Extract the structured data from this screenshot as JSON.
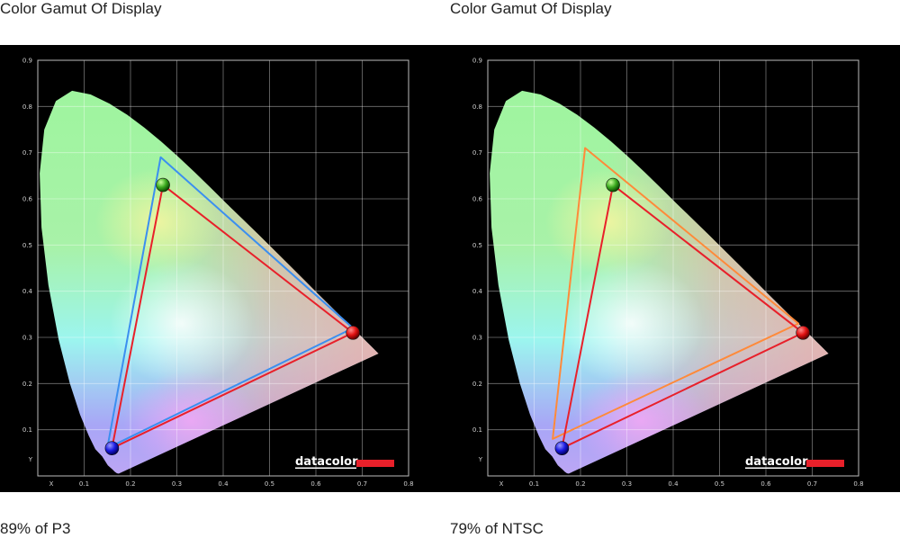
{
  "chart_data": [
    {
      "type": "scatter",
      "title": "Color Gamut Of Display",
      "caption": "89% of P3",
      "xlabel": "X",
      "ylabel": "Y",
      "xlim": [
        0,
        0.8
      ],
      "ylim": [
        0,
        0.9
      ],
      "x_ticks": [
        "0.1",
        "0.2",
        "0.3",
        "0.4",
        "0.5",
        "0.6",
        "0.7",
        "0.8"
      ],
      "y_ticks": [
        "0.1",
        "0.2",
        "0.3",
        "0.4",
        "0.5",
        "0.6",
        "0.7",
        "0.8",
        "0.9"
      ],
      "grid": true,
      "logo": "datacolor",
      "series": [
        {
          "points": [
            [
              0.68,
              0.32
            ],
            [
              0.265,
              0.69
            ],
            [
              0.15,
              0.06
            ]
          ],
          "color": "#3b8ff0"
        },
        {
          "points": [
            [
              0.68,
              0.31
            ],
            [
              0.27,
              0.63
            ],
            [
              0.16,
              0.06
            ]
          ],
          "color": "#e8202a"
        }
      ],
      "primaries": {
        "red": [
          0.68,
          0.31
        ],
        "green": [
          0.27,
          0.63
        ],
        "blue": [
          0.16,
          0.06
        ]
      }
    },
    {
      "type": "scatter",
      "title": "Color Gamut Of Display",
      "caption": "79% of NTSC",
      "xlabel": "X",
      "ylabel": "Y",
      "xlim": [
        0,
        0.8
      ],
      "ylim": [
        0,
        0.9
      ],
      "x_ticks": [
        "0.1",
        "0.2",
        "0.3",
        "0.4",
        "0.5",
        "0.6",
        "0.7",
        "0.8"
      ],
      "y_ticks": [
        "0.1",
        "0.2",
        "0.3",
        "0.4",
        "0.5",
        "0.6",
        "0.7",
        "0.8",
        "0.9"
      ],
      "grid": true,
      "logo": "datacolor",
      "series": [
        {
          "points": [
            [
              0.67,
              0.33
            ],
            [
              0.21,
              0.71
            ],
            [
              0.14,
              0.08
            ]
          ],
          "color": "#ff8a3a"
        },
        {
          "points": [
            [
              0.68,
              0.31
            ],
            [
              0.27,
              0.63
            ],
            [
              0.16,
              0.06
            ]
          ],
          "color": "#e8202a"
        }
      ],
      "primaries": {
        "red": [
          0.68,
          0.31
        ],
        "green": [
          0.27,
          0.63
        ],
        "blue": [
          0.16,
          0.06
        ]
      }
    }
  ]
}
